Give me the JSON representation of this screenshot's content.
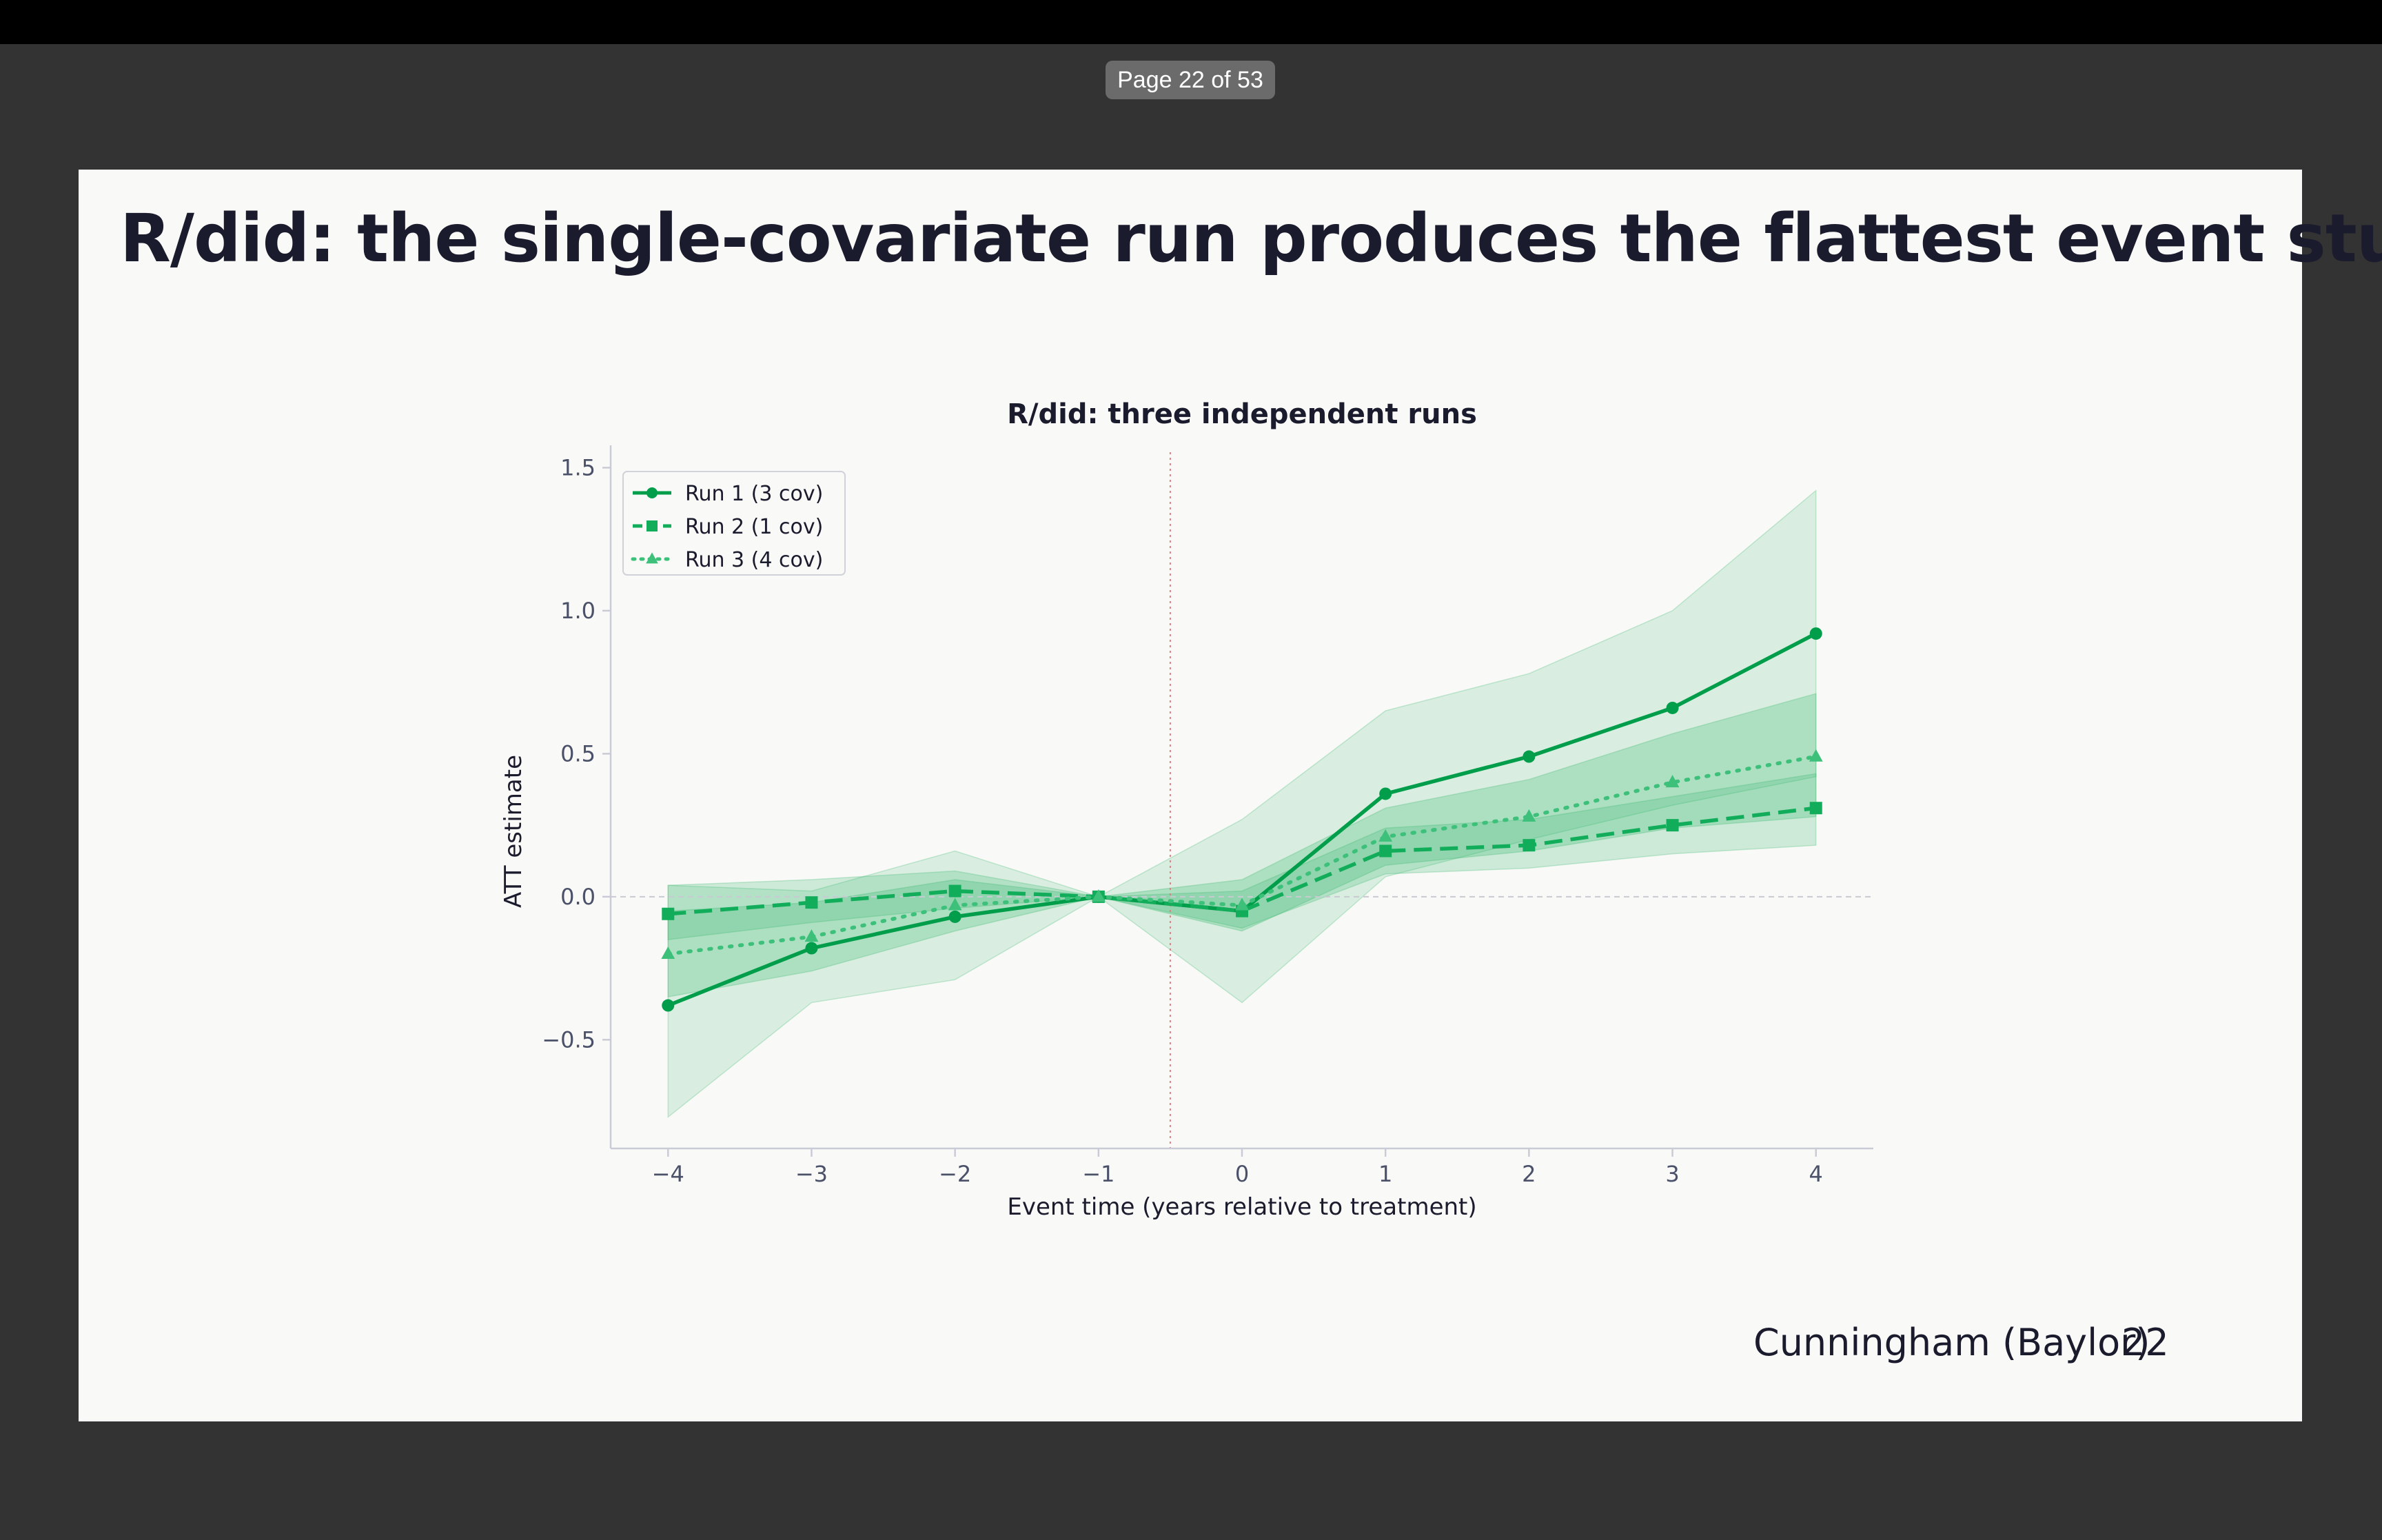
{
  "viewer": {
    "page_indicator": "Page 22 of 53"
  },
  "slide": {
    "title": "R/did: the single-covariate run produces the flattest event study",
    "footer_author": "Cunningham (Baylor)",
    "footer_page": "22"
  },
  "colors": {
    "run1": "#009e4a",
    "run2": "#12ad5a",
    "run3": "#3cc07a",
    "band": "#2fb567",
    "axis": "#c9ccd6",
    "tick_text": "#4a5168",
    "vline": "#e08080"
  },
  "chart_data": {
    "type": "line",
    "title": "R/did: three independent runs",
    "xlabel": "Event time (years relative to treatment)",
    "ylabel": "ATT estimate",
    "xlim": [
      -4.4,
      4.4
    ],
    "ylim": [
      -0.88,
      1.53
    ],
    "xticks": [
      -4,
      -3,
      -2,
      -1,
      0,
      1,
      2,
      3,
      4
    ],
    "xtick_labels": [
      "−4",
      "−3",
      "−2",
      "−1",
      "0",
      "1",
      "2",
      "3",
      "4"
    ],
    "yticks": [
      -0.5,
      0.0,
      0.5,
      1.0,
      1.5
    ],
    "ytick_labels": [
      "−0.5",
      "0.0",
      "0.5",
      "1.0",
      "1.5"
    ],
    "treatment_line_x": -0.5,
    "zero_line_y": 0,
    "x": [
      -4,
      -3,
      -2,
      -1,
      0,
      1,
      2,
      3,
      4
    ],
    "legend_position": "top-left",
    "series": [
      {
        "name": "Run 1 (3 cov)",
        "marker": "circle",
        "line": "solid",
        "values": [
          -0.38,
          -0.18,
          -0.07,
          0.0,
          -0.05,
          0.36,
          0.49,
          0.66,
          0.92
        ],
        "ci_lower": [
          -0.77,
          -0.37,
          -0.29,
          0.0,
          -0.37,
          0.07,
          0.2,
          0.32,
          0.42
        ],
        "ci_upper": [
          0.04,
          0.02,
          0.16,
          0.0,
          0.27,
          0.65,
          0.78,
          1.0,
          1.42
        ]
      },
      {
        "name": "Run 2 (1 cov)",
        "marker": "square",
        "line": "dashed",
        "values": [
          -0.06,
          -0.02,
          0.02,
          0.0,
          -0.05,
          0.16,
          0.18,
          0.25,
          0.31
        ],
        "ci_lower": [
          -0.15,
          -0.09,
          -0.04,
          0.0,
          -0.11,
          0.08,
          0.1,
          0.15,
          0.18
        ],
        "ci_upper": [
          0.04,
          0.06,
          0.09,
          0.0,
          0.02,
          0.24,
          0.27,
          0.35,
          0.43
        ]
      },
      {
        "name": "Run 3 (4 cov)",
        "marker": "triangle",
        "line": "dotted",
        "values": [
          -0.2,
          -0.14,
          -0.03,
          0.0,
          -0.03,
          0.21,
          0.28,
          0.4,
          0.49
        ],
        "ci_lower": [
          -0.35,
          -0.26,
          -0.12,
          0.0,
          -0.12,
          0.11,
          0.16,
          0.24,
          0.28
        ],
        "ci_upper": [
          -0.05,
          -0.02,
          0.06,
          0.0,
          0.06,
          0.31,
          0.41,
          0.57,
          0.71
        ]
      }
    ]
  }
}
